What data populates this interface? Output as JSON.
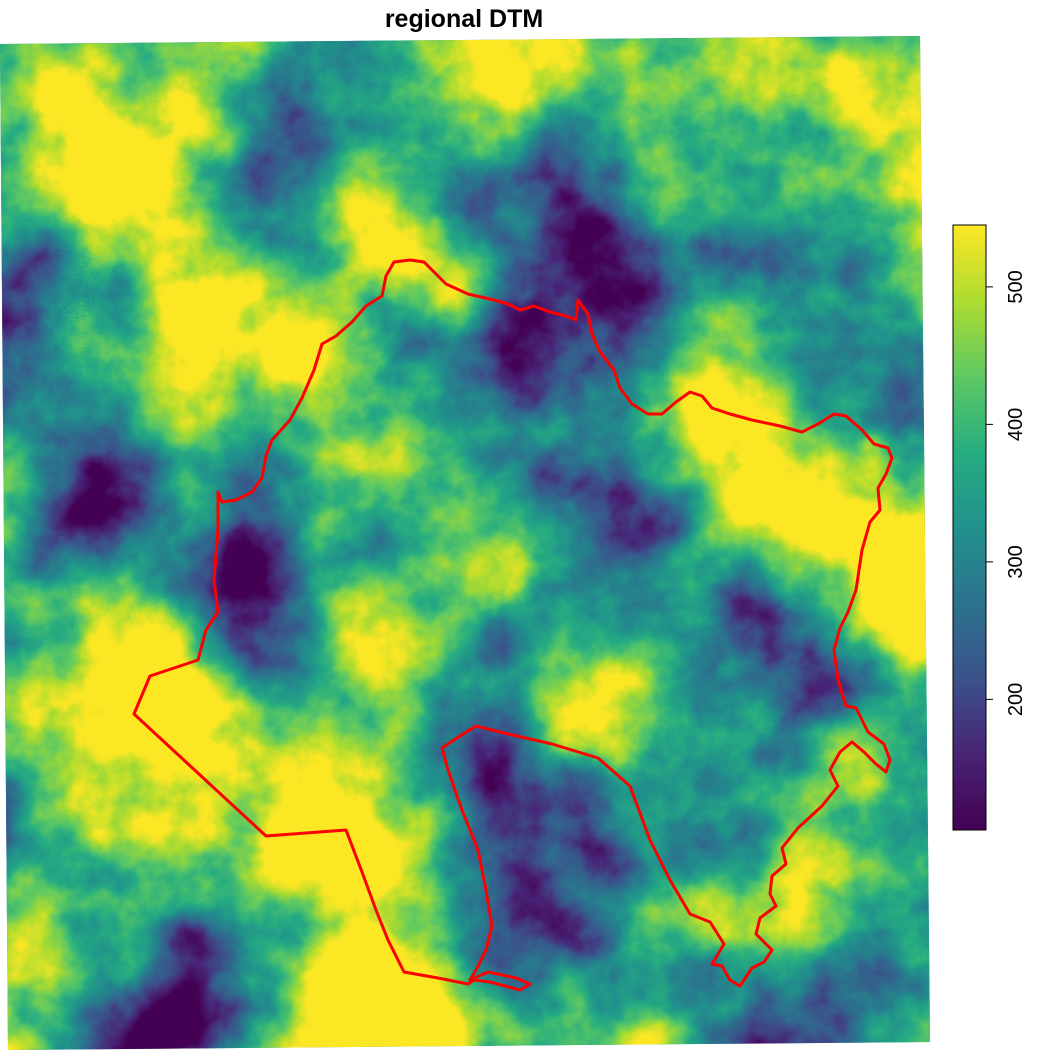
{
  "title": "regional DTM",
  "legend": {
    "ticks": [
      "200",
      "300",
      "400",
      "500"
    ],
    "tick_values": [
      200,
      300,
      400,
      500
    ],
    "min_value": 105,
    "max_value": 545,
    "palette": "viridis"
  },
  "boundary": {
    "color": "#ff0000"
  },
  "colors": {
    "viridis_low": "#440154",
    "viridis_mid_low": "#3b528b",
    "viridis_mid": "#21918c",
    "viridis_mid_high": "#5ec962",
    "viridis_high": "#fde725"
  }
}
